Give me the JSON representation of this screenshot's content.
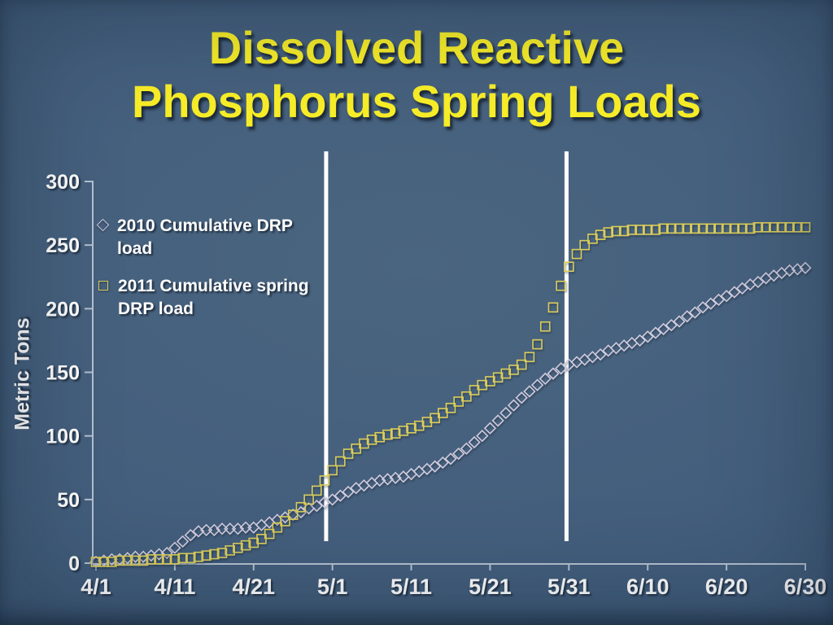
{
  "slide": {
    "title_line1": "Dissolved Reactive",
    "title_line2": "Phosphorus Spring Loads",
    "title_color": "#f8ee28",
    "background_color": "#42607e"
  },
  "chart_data": {
    "type": "scatter",
    "title": "",
    "xlabel": "",
    "ylabel": "Metric Tons",
    "ylim": [
      0,
      300
    ],
    "grid": false,
    "legend_position": "upper-left-inside",
    "x_start_label": "4/1",
    "x_end_label": "6/30",
    "x_tick_labels": [
      "4/1",
      "4/11",
      "4/21",
      "5/1",
      "5/11",
      "5/21",
      "5/31",
      "6/10",
      "6/20",
      "6/30"
    ],
    "x_tick_days": [
      0,
      10,
      20,
      30,
      40,
      50,
      60,
      70,
      80,
      90
    ],
    "y_tick_labels": [
      "0",
      "50",
      "100",
      "150",
      "200",
      "250",
      "300"
    ],
    "y_tick_values": [
      0,
      50,
      100,
      150,
      200,
      250,
      300
    ],
    "annotations": [
      {
        "type": "vline",
        "at_day": 29.2
      },
      {
        "type": "vline",
        "at_day": 59.7
      }
    ],
    "series": [
      {
        "name": "2010 Cumulative DRP load",
        "marker": "diamond",
        "color": "#d0cbde",
        "values": [
          1,
          2,
          3,
          3,
          4,
          5,
          5,
          6,
          7,
          8,
          12,
          17,
          22,
          25,
          26,
          26,
          27,
          27,
          27,
          28,
          28,
          30,
          32,
          34,
          36,
          38,
          40,
          43,
          45,
          48,
          50,
          53,
          56,
          59,
          61,
          63,
          65,
          66,
          67,
          68,
          70,
          72,
          74,
          76,
          79,
          82,
          86,
          90,
          95,
          100,
          106,
          112,
          118,
          124,
          130,
          135,
          140,
          145,
          149,
          153,
          156,
          158,
          160,
          162,
          164,
          167,
          169,
          171,
          173,
          175,
          178,
          181,
          184,
          187,
          190,
          194,
          197,
          201,
          204,
          207,
          210,
          213,
          216,
          219,
          221,
          224,
          226,
          228,
          230,
          231,
          232
        ]
      },
      {
        "name": "2011 Cumulative spring DRP load",
        "marker": "square",
        "color": "#dbcd5a",
        "values": [
          1,
          1,
          1,
          2,
          2,
          2,
          2,
          3,
          3,
          3,
          3,
          4,
          4,
          5,
          6,
          7,
          8,
          10,
          12,
          14,
          16,
          19,
          23,
          28,
          33,
          38,
          44,
          50,
          57,
          65,
          73,
          80,
          86,
          90,
          94,
          97,
          99,
          101,
          102,
          104,
          106,
          108,
          111,
          114,
          118,
          122,
          127,
          131,
          136,
          140,
          143,
          146,
          149,
          152,
          156,
          162,
          172,
          186,
          201,
          218,
          233,
          243,
          250,
          255,
          258,
          260,
          261,
          261,
          262,
          262,
          262,
          262,
          263,
          263,
          263,
          263,
          263,
          263,
          263,
          263,
          263,
          263,
          263,
          263,
          264,
          264,
          264,
          264,
          264,
          264,
          264
        ]
      }
    ]
  },
  "legend": {
    "item_2010": "2010 Cumulative DRP load",
    "item_2011": "2011 Cumulative spring DRP load"
  }
}
